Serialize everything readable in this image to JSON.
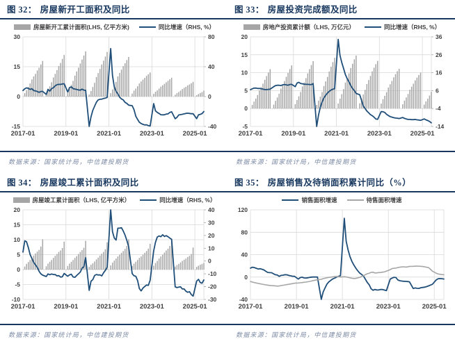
{
  "source_note": "数据来源：国家统计局，中信建投期货",
  "colors": {
    "navy_accent": "#17375e",
    "series_blue": "#1f4e79",
    "series_gray": "#a6a6a6",
    "grid": "#d9d9d9",
    "zero_line": "#a6a6a6",
    "axis_text": "#404040",
    "source_text": "#7e8ca5"
  },
  "chart_data": [
    {
      "type": "bar+line",
      "figure_no": "图 32：",
      "title": "房屋新开工面积及同比",
      "months": 102,
      "x_tick_positions": [
        0,
        24,
        48,
        72,
        96
      ],
      "x_tick_labels": [
        "2017-01",
        "2019-01",
        "2021-01",
        "2023-01",
        "2025-01"
      ],
      "left_axis": {
        "min": -15,
        "max": 30,
        "ticks": [
          30,
          15,
          0,
          -15
        ]
      },
      "right_axis": {
        "min": -40,
        "max": 80,
        "ticks": [
          80,
          40,
          0,
          -40
        ]
      },
      "zero_dashed": true,
      "legend": [
        {
          "label": "房屋新开工累计面积(LHS, 亿平方米)",
          "swatch": "bar",
          "color": "#a6a6a6"
        },
        {
          "label": "同比增速（RHS, %）",
          "swatch": "line",
          "color": "#1f4e79"
        }
      ],
      "bars": {
        "name": "房屋新开工累计面积",
        "axis": "left",
        "color": "#a6a6a6",
        "values": [
          null,
          1.7,
          3.2,
          4.8,
          6.6,
          8.6,
          10.1,
          11.4,
          13.1,
          14.5,
          16.1,
          17.9,
          null,
          1.8,
          3.5,
          5.2,
          7.2,
          9.6,
          11.4,
          13.3,
          15.3,
          16.9,
          18.9,
          20.9,
          null,
          1.9,
          3.9,
          5.9,
          7.9,
          10.5,
          12.6,
          14.5,
          16.6,
          18.6,
          20.6,
          22.7,
          null,
          1.0,
          2.8,
          4.8,
          6.9,
          9.8,
          11.8,
          13.9,
          16.1,
          18.0,
          20.1,
          22.4,
          null,
          1.7,
          3.6,
          5.3,
          7.4,
          10.1,
          11.9,
          13.5,
          15.3,
          16.7,
          18.3,
          19.9,
          null,
          1.5,
          3.0,
          4.0,
          5.2,
          6.6,
          7.6,
          8.5,
          9.4,
          10.4,
          11.2,
          12.1,
          null,
          1.4,
          2.4,
          3.1,
          4.0,
          5.0,
          5.7,
          6.4,
          7.2,
          7.9,
          8.7,
          9.5,
          null,
          0.9,
          1.7,
          2.3,
          3.0,
          3.8,
          4.4,
          4.9,
          5.6,
          6.1,
          6.7,
          7.4,
          null,
          0.7,
          1.3,
          1.8,
          2.3,
          3.0
        ]
      },
      "lines": [
        {
          "name": "同比增速",
          "axis": "right",
          "color": "#1f4e79",
          "width": 1.8,
          "values": [
            8.1,
            10.4,
            11.6,
            11.1,
            9.5,
            10.6,
            8.0,
            7.6,
            6.8,
            5.6,
            6.9,
            7.0,
            null,
            2.9,
            9.7,
            7.3,
            10.8,
            11.8,
            14.4,
            15.9,
            16.4,
            16.3,
            16.8,
            17.2,
            null,
            6.0,
            11.9,
            13.1,
            10.5,
            10.1,
            9.5,
            8.9,
            8.6,
            10.0,
            8.6,
            8.5,
            null,
            -40.0,
            -27.2,
            -18.4,
            -12.8,
            -7.6,
            -4.5,
            -3.6,
            -3.4,
            -2.6,
            -2.0,
            -1.2,
            null,
            64.3,
            28.2,
            12.9,
            6.9,
            3.6,
            -0.9,
            -3.2,
            -4.5,
            -7.7,
            -9.1,
            -11.4,
            null,
            -12.2,
            -17.5,
            -26.3,
            -30.6,
            -34.4,
            -36.1,
            -37.2,
            -38.0,
            -37.8,
            -38.9,
            -39.4,
            null,
            -9.4,
            -19.2,
            -21.2,
            -22.6,
            -24.3,
            -24.5,
            -24.4,
            -23.4,
            -23.2,
            -21.2,
            -20.4,
            null,
            -29.7,
            -27.8,
            -24.6,
            -24.2,
            -23.7,
            -23.2,
            -22.5,
            -22.2,
            -22.6,
            -23.0,
            -23.0,
            null,
            -29.6,
            -24.4,
            -23.8,
            -22.8,
            -20.0
          ]
        }
      ]
    },
    {
      "type": "bar+line",
      "figure_no": "图 33：",
      "title": "房屋投资完成额及同比",
      "months": 102,
      "x_tick_positions": [
        0,
        24,
        48,
        72,
        96
      ],
      "x_tick_labels": [
        "2017-01",
        "2019-01",
        "2021-01",
        "2023-01",
        "2025-01"
      ],
      "left_axis": {
        "min": -5,
        "max": 20,
        "ticks": [
          20,
          15,
          10,
          5,
          0,
          -5
        ]
      },
      "right_axis": {
        "min": -14,
        "max": 36,
        "ticks": [
          36,
          26,
          16,
          6,
          -4,
          -14
        ]
      },
      "zero_dashed": true,
      "legend": [
        {
          "label": "房地产投资累计额（LHS, 万亿元）",
          "swatch": "bar",
          "color": "#a6a6a6"
        },
        {
          "label": "同比增速（RHS, %）",
          "swatch": "line",
          "color": "#1f4e79"
        }
      ],
      "bars": {
        "name": "房地产投资累计额",
        "axis": "left",
        "color": "#a6a6a6",
        "values": [
          null,
          0.99,
          1.93,
          2.77,
          3.76,
          5.06,
          5.98,
          6.94,
          8.01,
          9.05,
          10.04,
          10.98,
          null,
          1.08,
          2.13,
          3.06,
          4.14,
          5.55,
          6.56,
          7.67,
          8.86,
          9.93,
          11.01,
          12.03,
          null,
          1.21,
          2.38,
          3.42,
          4.61,
          6.16,
          7.28,
          8.46,
          9.8,
          10.98,
          12.13,
          13.22,
          null,
          1.01,
          2.2,
          3.31,
          4.6,
          6.28,
          7.58,
          8.81,
          10.31,
          11.66,
          12.95,
          14.14,
          null,
          1.4,
          2.76,
          4.02,
          5.42,
          7.22,
          8.49,
          9.81,
          11.27,
          12.49,
          13.73,
          14.76,
          null,
          1.45,
          2.77,
          3.92,
          5.21,
          6.83,
          7.95,
          9.08,
          10.36,
          11.39,
          12.39,
          13.29,
          null,
          1.37,
          2.6,
          3.55,
          4.57,
          5.86,
          6.77,
          7.69,
          8.71,
          9.59,
          10.4,
          11.09,
          null,
          1.18,
          2.21,
          3.09,
          4.06,
          5.25,
          6.09,
          6.92,
          7.87,
          8.63,
          9.37,
          10.03,
          null,
          1.08,
          1.99,
          2.73,
          3.62,
          4.67
        ]
      },
      "lines": [
        {
          "name": "同比增速",
          "axis": "right",
          "color": "#1f4e79",
          "width": 1.8,
          "values": [
            6.5,
            7.0,
            7.4,
            7.4,
            7.2,
            7.2,
            7.0,
            6.8,
            6.6,
            6.6,
            6.7,
            6.8,
            null,
            8.2,
            8.8,
            9.0,
            9.0,
            8.8,
            9.2,
            9.4,
            9.2,
            9.0,
            9.4,
            9.5,
            null,
            8.2,
            10.2,
            10.6,
            10.0,
            9.8,
            9.6,
            9.5,
            9.5,
            9.4,
            9.3,
            9.9,
            null,
            -14.8,
            -7.7,
            -3.3,
            -0.3,
            1.9,
            3.4,
            4.6,
            5.6,
            6.3,
            6.8,
            7.0,
            null,
            34.6,
            25.6,
            21.6,
            18.3,
            15.0,
            12.7,
            10.9,
            8.8,
            7.2,
            6.0,
            4.4,
            null,
            3.7,
            0.7,
            -2.7,
            -4.0,
            -5.4,
            -6.4,
            -7.4,
            -8.0,
            -8.8,
            -9.8,
            -10.0,
            null,
            -5.7,
            -5.8,
            -6.2,
            -7.2,
            -7.9,
            -8.5,
            -8.8,
            -9.1,
            -9.3,
            -9.4,
            -9.6,
            null,
            -9.0,
            -9.5,
            -9.8,
            -10.1,
            -10.1,
            -10.2,
            -10.2,
            -10.1,
            -10.3,
            -10.4,
            -10.6,
            null,
            -9.8,
            -10.3,
            -10.7,
            -11.2,
            -12.0
          ]
        }
      ]
    },
    {
      "type": "bar+line",
      "figure_no": "图 34：",
      "title": "房屋竣工累计面积及同比",
      "months": 102,
      "x_tick_positions": [
        0,
        24,
        48,
        72,
        96
      ],
      "x_tick_labels": [
        "2017-01",
        "2019-01",
        "2021-01",
        "2023-01",
        "2025-01"
      ],
      "left_axis": {
        "min": -10,
        "max": 20,
        "ticks": [
          20,
          15,
          10,
          5,
          0,
          -5,
          -10
        ]
      },
      "right_axis": {
        "min": -30,
        "max": 40,
        "ticks": [
          40,
          30,
          20,
          10,
          0,
          -10,
          -20,
          -30
        ]
      },
      "zero_dashed": true,
      "legend": [
        {
          "label": "房屋竣工累计面积（LHS, 亿平方米）",
          "swatch": "bar",
          "color": "#a6a6a6"
        },
        {
          "label": "同比增速（RHS, %）",
          "swatch": "line",
          "color": "#1f4e79"
        }
      ],
      "bars": {
        "name": "房屋竣工累计面积",
        "axis": "left",
        "color": "#a6a6a6",
        "values": [
          null,
          1.0,
          1.9,
          2.5,
          3.2,
          4.0,
          4.7,
          5.4,
          6.0,
          6.6,
          7.7,
          10.15,
          null,
          1.1,
          2.0,
          2.6,
          3.2,
          3.9,
          4.6,
          5.2,
          5.9,
          6.4,
          7.2,
          9.36,
          null,
          1.2,
          2.0,
          2.6,
          3.2,
          3.9,
          4.5,
          5.2,
          5.9,
          6.5,
          7.3,
          9.6,
          null,
          0.9,
          1.6,
          2.1,
          2.7,
          3.4,
          4.0,
          4.7,
          5.3,
          5.9,
          6.8,
          9.12,
          null,
          1.4,
          2.3,
          3.0,
          3.7,
          4.4,
          5.0,
          5.6,
          6.2,
          6.9,
          7.9,
          10.14,
          null,
          1.2,
          2.0,
          2.6,
          3.2,
          3.9,
          4.4,
          5.0,
          5.6,
          6.2,
          7.0,
          8.62,
          null,
          1.3,
          2.2,
          2.9,
          3.7,
          4.4,
          5.0,
          5.7,
          6.4,
          7.0,
          7.9,
          9.98,
          null,
          1.0,
          1.5,
          1.9,
          2.4,
          2.9,
          3.3,
          3.7,
          4.2,
          4.6,
          5.2,
          7.37,
          null,
          0.9,
          1.3,
          1.6,
          1.9,
          2.2
        ]
      },
      "lines": [
        {
          "name": "同比增速",
          "axis": "right",
          "color": "#1f4e79",
          "width": 1.8,
          "values": [
            7.0,
            15.8,
            15.1,
            10.6,
            5.0,
            2.0,
            -1.0,
            -3.0,
            -5.0,
            -8.0,
            -10.0,
            -11.0,
            null,
            -12.1,
            -10.1,
            -10.7,
            -10.1,
            -10.6,
            -10.5,
            -11.6,
            -11.4,
            -12.5,
            -12.3,
            -9.7,
            null,
            -11.9,
            -10.8,
            -10.3,
            -12.4,
            -12.7,
            -11.3,
            -10.0,
            -8.6,
            -5.5,
            -4.5,
            2.6,
            null,
            -22.9,
            -15.8,
            -14.5,
            -11.3,
            -10.5,
            -10.9,
            -10.8,
            -11.6,
            -9.2,
            -7.3,
            -4.9,
            null,
            40.0,
            22.9,
            17.9,
            16.4,
            25.7,
            25.7,
            26.0,
            23.4,
            20.3,
            16.2,
            11.2,
            null,
            -9.8,
            -11.5,
            -11.9,
            -15.3,
            -21.5,
            -23.3,
            -21.1,
            -19.9,
            -18.7,
            -19.0,
            -15.0,
            null,
            8.0,
            14.7,
            18.8,
            19.6,
            19.0,
            20.5,
            19.2,
            19.8,
            19.0,
            17.9,
            17.0,
            null,
            -20.2,
            -20.7,
            -20.4,
            -20.1,
            -21.8,
            -21.8,
            -23.6,
            -24.4,
            -23.9,
            -26.2,
            -27.4,
            null,
            -15.6,
            -14.3,
            -16.8,
            -17.3,
            -14.8
          ]
        }
      ]
    },
    {
      "type": "line",
      "figure_no": "图 35：",
      "title": "房屋销售及待销面积累计同比（%）",
      "months": 102,
      "x_tick_positions": [
        0,
        24,
        48,
        72,
        96
      ],
      "x_tick_labels": [
        "2017-01",
        "2019-01",
        "2021-01",
        "2023-01",
        "2025-01"
      ],
      "left_axis": {
        "min": -40,
        "max": 120,
        "ticks": [
          120,
          80,
          40,
          0,
          -40
        ]
      },
      "zero_dashed": false,
      "legend": [
        {
          "label": "销售面积增速",
          "swatch": "line",
          "color": "#1f4e79"
        },
        {
          "label": "待售面积增速",
          "swatch": "line",
          "color": "#a6a6a6"
        }
      ],
      "lines": [
        {
          "name": "销售面积增速",
          "axis": "left",
          "color": "#1f4e79",
          "width": 1.8,
          "values": [
            16.0,
            17.6,
            16.9,
            15.7,
            14.3,
            15.0,
            14.0,
            12.7,
            10.3,
            8.2,
            7.9,
            7.7,
            null,
            4.1,
            3.6,
            1.3,
            2.9,
            3.3,
            4.2,
            4.0,
            2.9,
            2.2,
            1.4,
            1.3,
            null,
            -3.6,
            -0.9,
            -0.3,
            -1.6,
            -1.8,
            -1.3,
            -0.6,
            -0.1,
            0.1,
            0.2,
            -0.1,
            null,
            -39.9,
            -26.3,
            -19.3,
            -12.3,
            -8.4,
            -5.8,
            -3.3,
            -1.8,
            0.0,
            1.3,
            2.6,
            null,
            104.9,
            63.8,
            48.1,
            36.3,
            27.7,
            21.5,
            15.9,
            11.3,
            7.3,
            4.8,
            1.9,
            null,
            -9.6,
            -13.8,
            -20.9,
            -23.6,
            -22.2,
            -23.1,
            -23.0,
            -22.2,
            -22.3,
            -23.3,
            -24.3,
            null,
            -3.6,
            -1.8,
            -0.4,
            -0.9,
            -5.3,
            -6.5,
            -7.1,
            -7.5,
            -7.8,
            -8.0,
            -8.5,
            null,
            -20.5,
            -19.4,
            -20.2,
            -20.3,
            -19.0,
            -18.6,
            -18.0,
            -17.1,
            -15.8,
            -14.3,
            -12.9,
            null,
            -5.1,
            -3.0,
            -2.8,
            -2.9,
            -3.5
          ]
        },
        {
          "name": "待售面积增速",
          "axis": "left",
          "color": "#a6a6a6",
          "width": 1.6,
          "values": [
            -8.0,
            -9.0,
            -9.8,
            -10.6,
            -11.3,
            -12.0,
            -12.7,
            -13.3,
            -13.9,
            -14.5,
            -15.0,
            -15.3,
            null,
            -15.7,
            -16.2,
            -16.0,
            -15.2,
            -14.7,
            -14.1,
            -13.5,
            -13.0,
            -12.4,
            -11.7,
            -11.0,
            null,
            -10.6,
            -10.2,
            -9.8,
            -9.4,
            -9.0,
            -8.4,
            -7.8,
            -7.0,
            -6.2,
            -5.5,
            -4.9,
            null,
            -4.0,
            -2.8,
            -2.0,
            -1.2,
            -0.6,
            -0.2,
            0.4,
            0.8,
            1.0,
            0.6,
            0.1,
            null,
            0.6,
            0.2,
            -0.6,
            -1.4,
            -2.2,
            -2.6,
            -2.4,
            -1.6,
            -0.6,
            0.8,
            2.4,
            null,
            5.9,
            6.8,
            8.4,
            8.6,
            7.3,
            7.5,
            8.0,
            8.1,
            8.8,
            9.3,
            10.5,
            null,
            13.2,
            15.2,
            15.7,
            15.9,
            17.1,
            17.6,
            18.0,
            18.3,
            17.8,
            18.0,
            19.0,
            null,
            19.2,
            19.4,
            19.5,
            19.3,
            19.2,
            18.8,
            18.2,
            17.6,
            16.8,
            14.0,
            10.5,
            null,
            6.9,
            5.5,
            4.9,
            4.4,
            4.0
          ]
        }
      ]
    }
  ]
}
